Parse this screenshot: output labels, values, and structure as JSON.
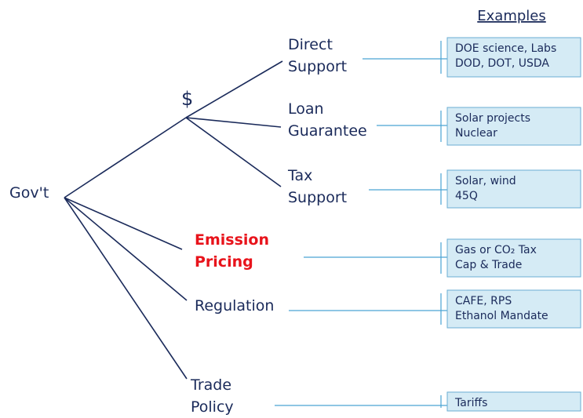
{
  "header": {
    "examples_title": "Examples"
  },
  "root": {
    "label": "Gov't"
  },
  "branch": {
    "label": "$"
  },
  "nodes": [
    {
      "label": [
        "Direct",
        "Support"
      ],
      "examples": [
        "DOE science, Labs",
        "DOD, DOT, USDA"
      ]
    },
    {
      "label": [
        "Loan",
        "Guarantee"
      ],
      "examples": [
        "Solar projects",
        "Nuclear"
      ]
    },
    {
      "label": [
        "Tax",
        "Support"
      ],
      "examples": [
        "Solar, wind",
        "45Q"
      ]
    },
    {
      "label": [
        "Emission",
        "Pricing"
      ],
      "examples": [
        "Gas or CO₂ Tax",
        "Cap & Trade"
      ]
    },
    {
      "label": [
        "Regulation"
      ],
      "examples": [
        "CAFE, RPS",
        "Ethanol Mandate"
      ]
    },
    {
      "label": [
        "Trade",
        "Policy"
      ],
      "examples": [
        "Tariffs"
      ]
    }
  ]
}
